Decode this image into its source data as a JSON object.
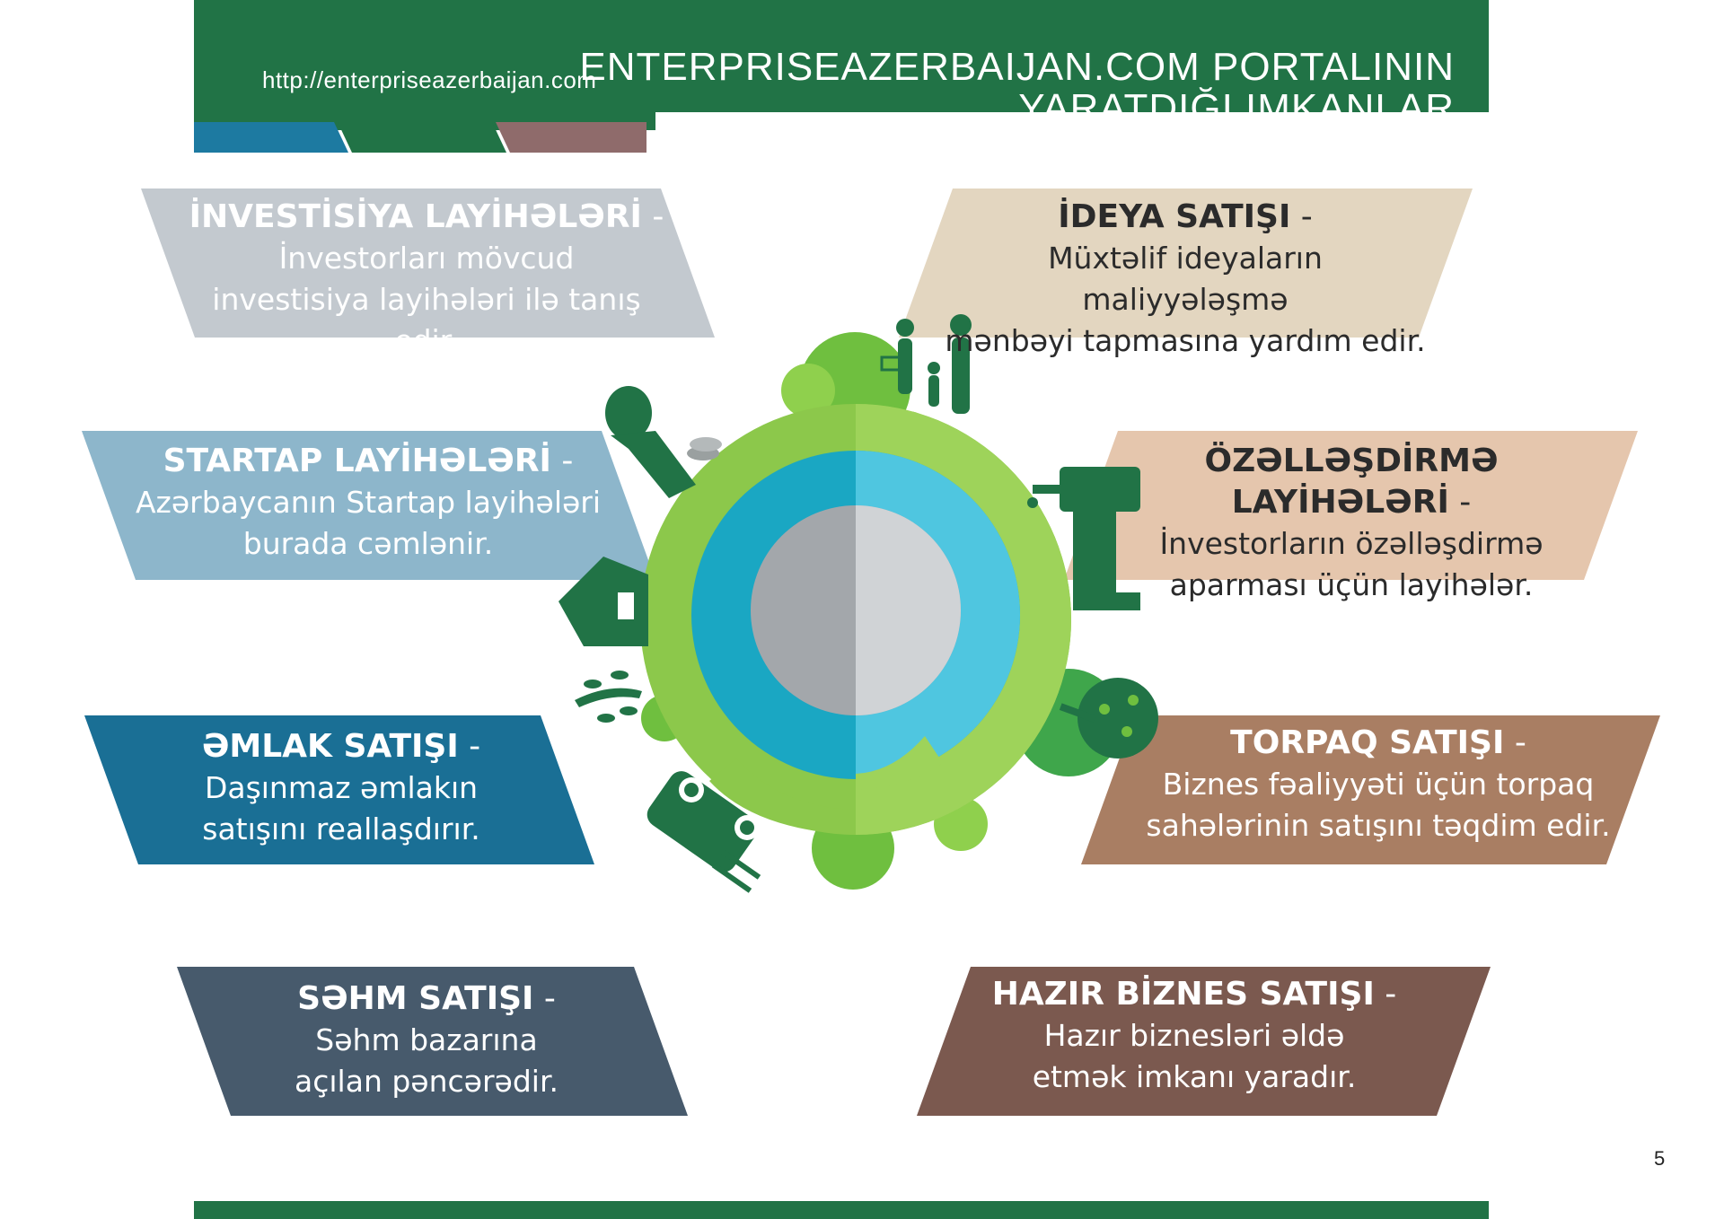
{
  "header": {
    "url": "http://enterpriseazerbaijan.com",
    "title_line1": "ENTERPRISEAZERBAIJAN.COM PORTALININ",
    "title_line2": "YARATDIĞI IMKANLAR"
  },
  "colors": {
    "header_green": "#217346",
    "stripe_blue": "#1d7aa1",
    "stripe_green": "#217346",
    "stripe_mauve": "#8f6b6b"
  },
  "cards": [
    {
      "id": "investisiya",
      "heading": "İNVESTİSİYA LAYİHƏLƏRİ",
      "dash": " -",
      "line1": "İnvestorları mövcud",
      "line2": "investisiya layihələri ilə tanış edir.",
      "bg": "#c3c9cf",
      "fg": "#ffffff"
    },
    {
      "id": "ideya",
      "heading": "İDEYA SATIŞI",
      "dash": " -",
      "line1": "Müxtəlif ideyaların maliyyələşmə",
      "line2": "mənbəyi tapmasına yardım edir.",
      "bg": "#e3d6c0",
      "fg": "#2b2b2b"
    },
    {
      "id": "startap",
      "heading": "STARTAP LAYİHƏLƏRİ",
      "dash": " -",
      "line1": "Azərbaycanın Startap layihələri",
      "line2": "burada cəmlənir.",
      "bg": "#8db6cb",
      "fg": "#ffffff"
    },
    {
      "id": "ozellesdirme",
      "heading": "ÖZƏLLƏŞDİRMƏ LAYİHƏLƏRİ",
      "dash": " -",
      "line1": "İnvestorların özəlləşdirmə",
      "line2": "aparması üçün layihələr.",
      "bg": "#e5c6ad",
      "fg": "#2b2b2b"
    },
    {
      "id": "emlak",
      "heading": "ƏMLAK SATIŞI",
      "dash": " -",
      "line1": "Daşınmaz əmlakın",
      "line2": "satışını reallaşdırır.",
      "bg": "#1a6f95",
      "fg": "#ffffff"
    },
    {
      "id": "torpaq",
      "heading": "TORPAQ SATIŞI",
      "dash": " -",
      "line1": "Biznes fəaliyyəti üçün torpaq",
      "line2": "sahələrinin satışını təqdim edir.",
      "bg": "#a97e63",
      "fg": "#ffffff"
    },
    {
      "id": "sehm",
      "heading": "SƏHM SATIŞI",
      "dash": " -",
      "line1": "Səhm bazarına",
      "line2": "açılan pəncərədir.",
      "bg": "#475a6c",
      "fg": "#ffffff"
    },
    {
      "id": "hazir",
      "heading": "HAZIR BİZNES SATIŞI",
      "dash": " -",
      "line1": "Hazır biznesləri əldə",
      "line2": "etmək imkanı yaradır.",
      "bg": "#7b594f",
      "fg": "#ffffff"
    }
  ],
  "page_number": "5",
  "icons": [
    "family-silhouette-icon",
    "woman-with-coins-icon",
    "house-icon",
    "tree-sprout-icon",
    "car-icon",
    "construction-machine-icon",
    "apple-tree-icon",
    "globe-logo-icon"
  ]
}
